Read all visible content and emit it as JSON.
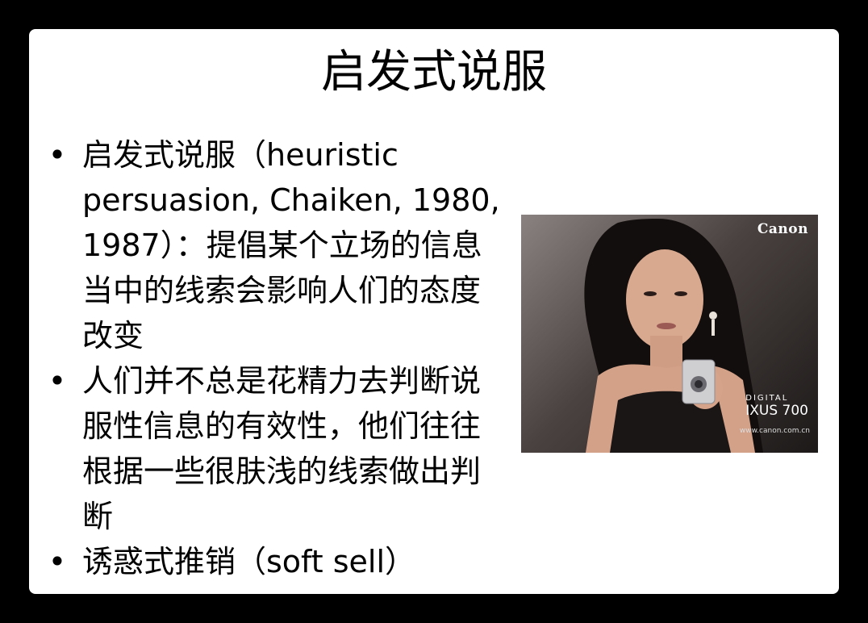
{
  "slide": {
    "title": "启发式说服",
    "bullets": [
      "启发式说服（heuristic persuasion, Chaiken, 1980, 1987）：提倡某个立场的信息当中的线索会影响人们的态度改变",
      "人们并不总是花精力去判断说服性信息的有效性，他们往往根据一些很肤浅的线索做出判断",
      "诱惑式推销（soft sell）"
    ],
    "bullet_symbol": "•"
  },
  "advert": {
    "brand": "Canon",
    "product_line1": "DIGITAL",
    "product_line2": "IXUS 700",
    "url": "www.canon.com.cn"
  }
}
